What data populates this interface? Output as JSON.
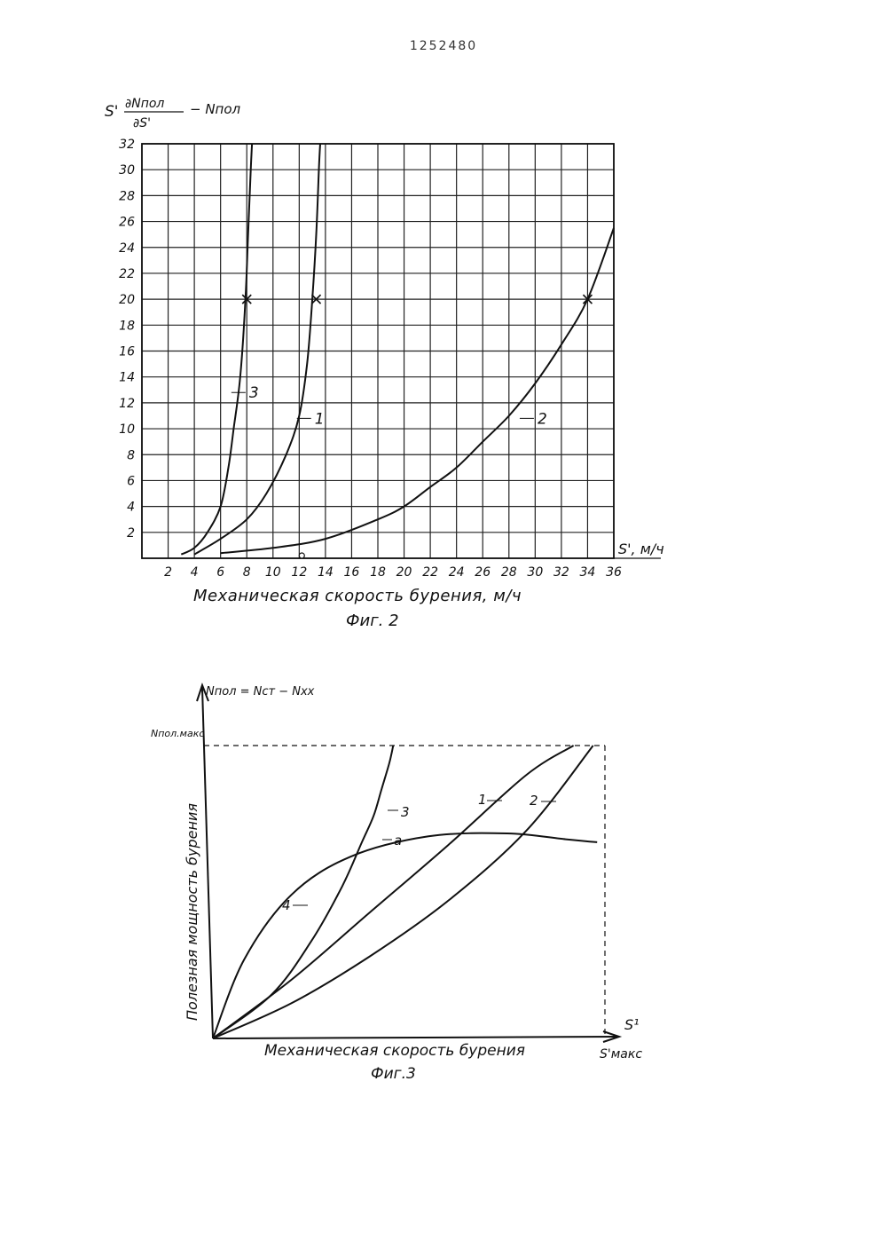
{
  "page_number": "1252480",
  "chart_data": [
    {
      "type": "line",
      "caption": "Фиг. 2",
      "xlabel": "Механическая скорость бурения, м/ч",
      "x_axis_symbol": "S', м/ч",
      "ylabel_parts": {
        "prefix": "S'",
        "numerator": "∂Nпол",
        "denominator": "∂S'",
        "suffix": "− Nпол"
      },
      "xlim": [
        0,
        36
      ],
      "ylim": [
        0,
        32
      ],
      "x_ticks": [
        2,
        4,
        6,
        8,
        10,
        12,
        14,
        16,
        18,
        20,
        22,
        24,
        26,
        28,
        30,
        32,
        34,
        36
      ],
      "y_ticks": [
        2,
        4,
        6,
        8,
        10,
        12,
        14,
        16,
        18,
        20,
        22,
        24,
        26,
        28,
        30,
        32
      ],
      "grid": true,
      "series": [
        {
          "name": "1",
          "x": [
            4,
            6,
            8,
            9.5,
            11,
            12,
            12.6,
            13,
            13.3,
            13.5,
            13.6
          ],
          "y": [
            0.3,
            1.5,
            3,
            5,
            8,
            11,
            15,
            20,
            25,
            30,
            32
          ]
        },
        {
          "name": "2",
          "x": [
            6,
            10,
            14,
            18,
            20,
            22,
            24,
            26,
            28,
            30,
            32,
            34,
            36
          ],
          "y": [
            0.4,
            0.8,
            1.5,
            3,
            4,
            5.5,
            7,
            9,
            11,
            13.5,
            16.5,
            20,
            25.5
          ]
        },
        {
          "name": "3",
          "x": [
            3,
            4,
            5,
            6,
            6.6,
            7,
            7.5,
            7.9,
            8.1,
            8.3,
            8.4
          ],
          "y": [
            0.3,
            0.8,
            2,
            4,
            7,
            10,
            14,
            20,
            25,
            30,
            32
          ]
        }
      ],
      "markers": [
        {
          "series": "3",
          "x": 8,
          "y": 20
        },
        {
          "series": "1",
          "x": 13.3,
          "y": 20
        },
        {
          "series": "2",
          "x": 34,
          "y": 20
        }
      ],
      "series_labels": [
        {
          "name": "3",
          "x": 7.5,
          "y": 12.8
        },
        {
          "name": "1",
          "x": 12.5,
          "y": 10.8
        },
        {
          "name": "2",
          "x": 29.5,
          "y": 10.8
        }
      ]
    },
    {
      "type": "line",
      "caption": "Фиг.3",
      "xlabel": "Механическая скорость бурения",
      "ylabel": "Полезная мощность бурения",
      "y_axis_symbol": "Nпол = Nст − Nхх",
      "y_max_label": "Nпол.макс",
      "x_axis_symbol": "S¹",
      "x_max_label": "S'макс",
      "xlim": [
        0,
        1
      ],
      "ylim": [
        0,
        1
      ],
      "series": [
        {
          "name": "1",
          "x": [
            0,
            0.2,
            0.4,
            0.6,
            0.8,
            0.92
          ],
          "y": [
            0,
            0.2,
            0.43,
            0.66,
            0.9,
            1.0
          ]
        },
        {
          "name": "2",
          "x": [
            0,
            0.2,
            0.4,
            0.6,
            0.8,
            0.97
          ],
          "y": [
            0,
            0.12,
            0.28,
            0.47,
            0.71,
            1.0
          ]
        },
        {
          "name": "3",
          "x": [
            0,
            0.15,
            0.25,
            0.33,
            0.38,
            0.41,
            0.43,
            0.45,
            0.46
          ],
          "y": [
            0,
            0.15,
            0.33,
            0.52,
            0.67,
            0.76,
            0.85,
            0.94,
            1.0
          ]
        },
        {
          "name": "4",
          "x": [
            0,
            0.08,
            0.2,
            0.35,
            0.55,
            0.75,
            0.9,
            0.98
          ],
          "y": [
            0,
            0.27,
            0.49,
            0.62,
            0.69,
            0.7,
            0.68,
            0.67
          ]
        }
      ],
      "annotations": [
        "a"
      ],
      "series_labels": [
        "1",
        "2",
        "3",
        "4"
      ]
    }
  ]
}
